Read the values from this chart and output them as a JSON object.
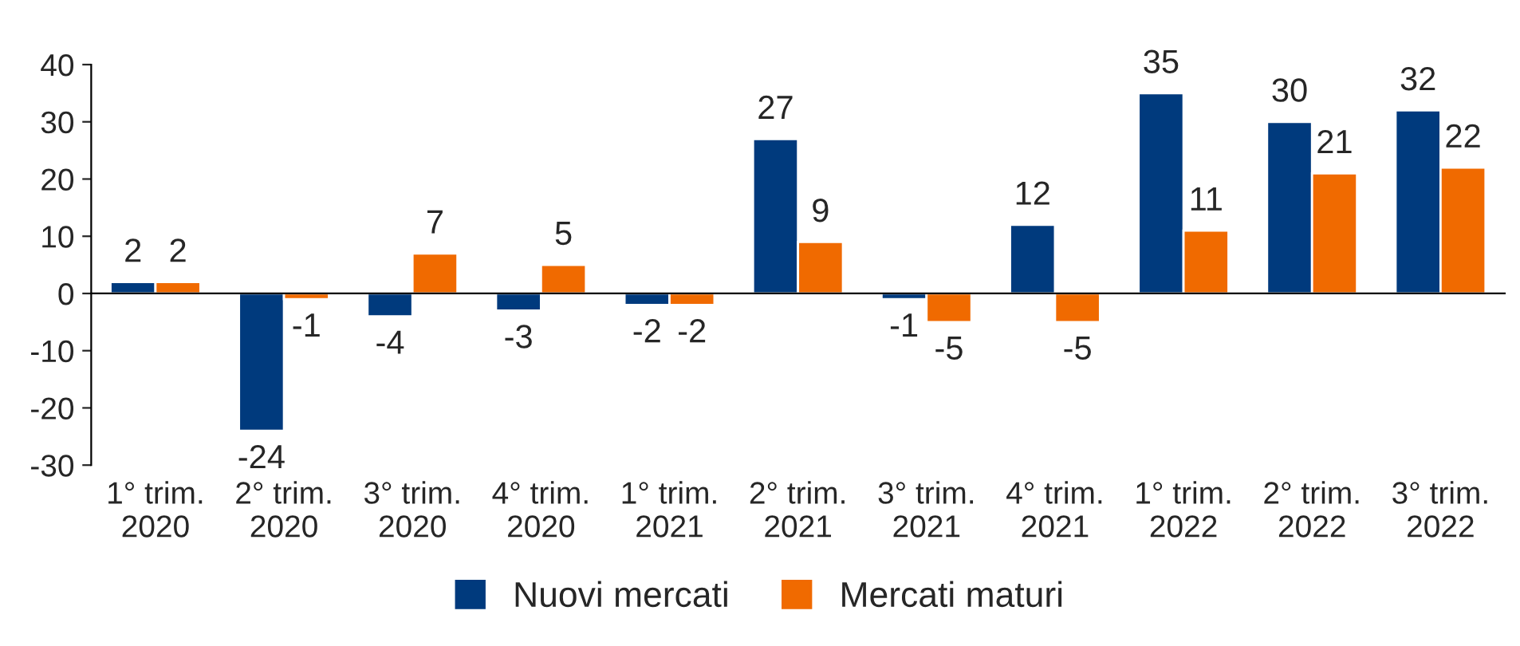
{
  "chart_data": {
    "type": "bar",
    "categories": [
      "1° trim.\n2020",
      "2° trim.\n2020",
      "3° trim.\n2020",
      "4° trim.\n2020",
      "1° trim.\n2021",
      "2° trim.\n2021",
      "3° trim.\n2021",
      "4° trim.\n2021",
      "1° trim.\n2022",
      "2° trim.\n2022",
      "3° trim.\n2022"
    ],
    "series": [
      {
        "name": "Nuovi mercati",
        "color": "#003a7d",
        "values": [
          2,
          -24,
          -4,
          -3,
          -2,
          27,
          -1,
          12,
          35,
          30,
          32
        ]
      },
      {
        "name": "Mercati maturi",
        "color": "#f06a00",
        "values": [
          2,
          -1,
          7,
          5,
          -2,
          9,
          -5,
          -5,
          11,
          21,
          22
        ]
      }
    ],
    "ylim": [
      -30,
      40
    ],
    "yticks": [
      -30,
      -20,
      -10,
      0,
      10,
      20,
      30,
      40
    ],
    "data_labels": true,
    "legend": "bottom"
  }
}
